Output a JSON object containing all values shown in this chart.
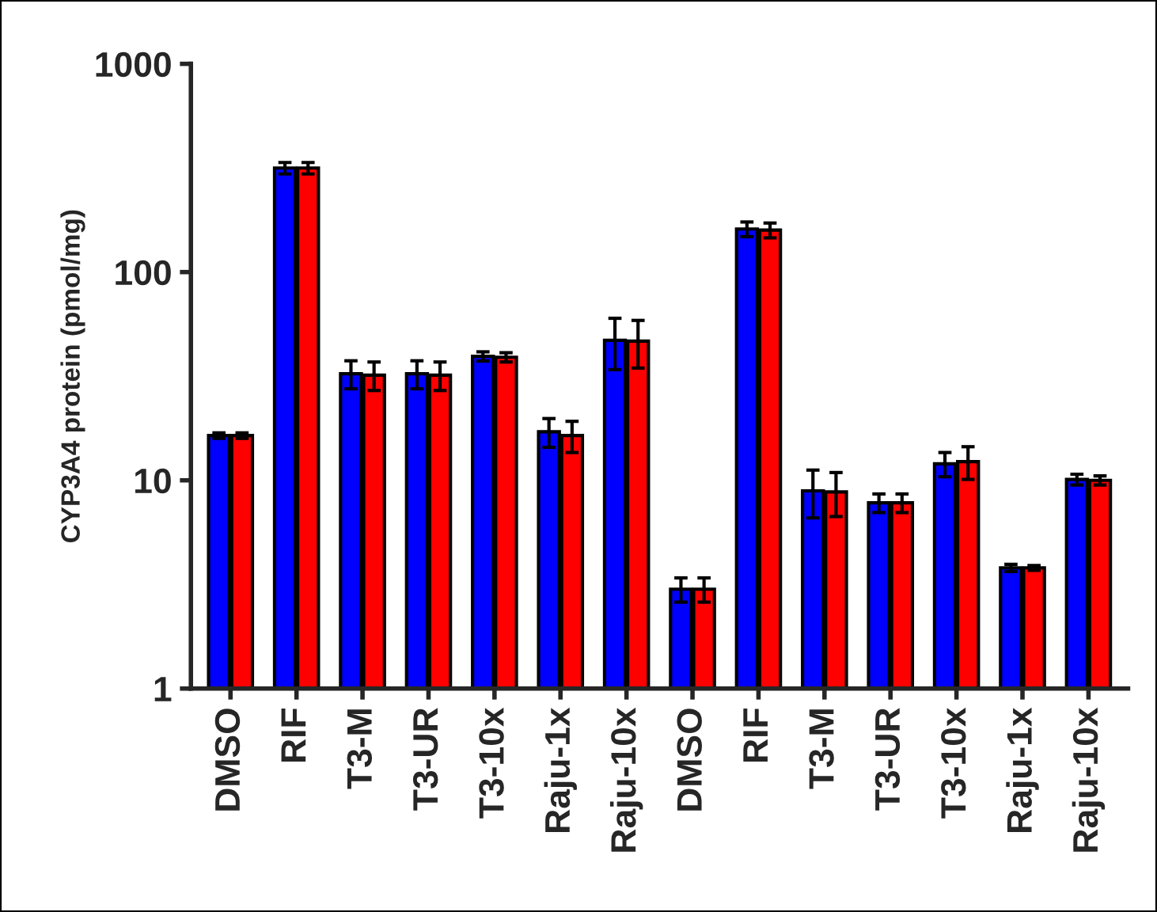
{
  "chart_data": {
    "type": "bar",
    "ylabel": "CYP3A4 protein (pmol/mg)",
    "categories": [
      "DMSO",
      "RIF",
      "T3-M",
      "T3-UR",
      "T3-10x",
      "Raju-1x",
      "Raju-10x",
      "DMSO",
      "RIF",
      "T3-M",
      "T3-UR",
      "T3-10x",
      "Raju-1x",
      "Raju-10x"
    ],
    "series": [
      {
        "color": "#0000ff",
        "values": [
          16.4,
          316,
          32.5,
          32.5,
          39.4,
          17.1,
          47,
          3.0,
          161,
          8.9,
          7.8,
          12.0,
          3.8,
          10.1
        ],
        "errors": [
          0.5,
          20,
          5,
          5,
          2,
          2.7,
          13,
          0.4,
          13,
          2.3,
          0.8,
          1.6,
          0.15,
          0.6
        ]
      },
      {
        "color": "#ff0000",
        "values": [
          16.4,
          316,
          32,
          32,
          39,
          16.4,
          46.6,
          3.0,
          159,
          8.8,
          7.8,
          12.3,
          3.8,
          10.0
        ],
        "errors": [
          0.5,
          20,
          5,
          5,
          2,
          2.8,
          12,
          0.4,
          13,
          2.1,
          0.8,
          2.2,
          0.1,
          0.5
        ]
      }
    ],
    "log": "y",
    "ylim": [
      1,
      1000
    ],
    "yticks": [
      1,
      10,
      100,
      1000
    ],
    "grid": false
  }
}
